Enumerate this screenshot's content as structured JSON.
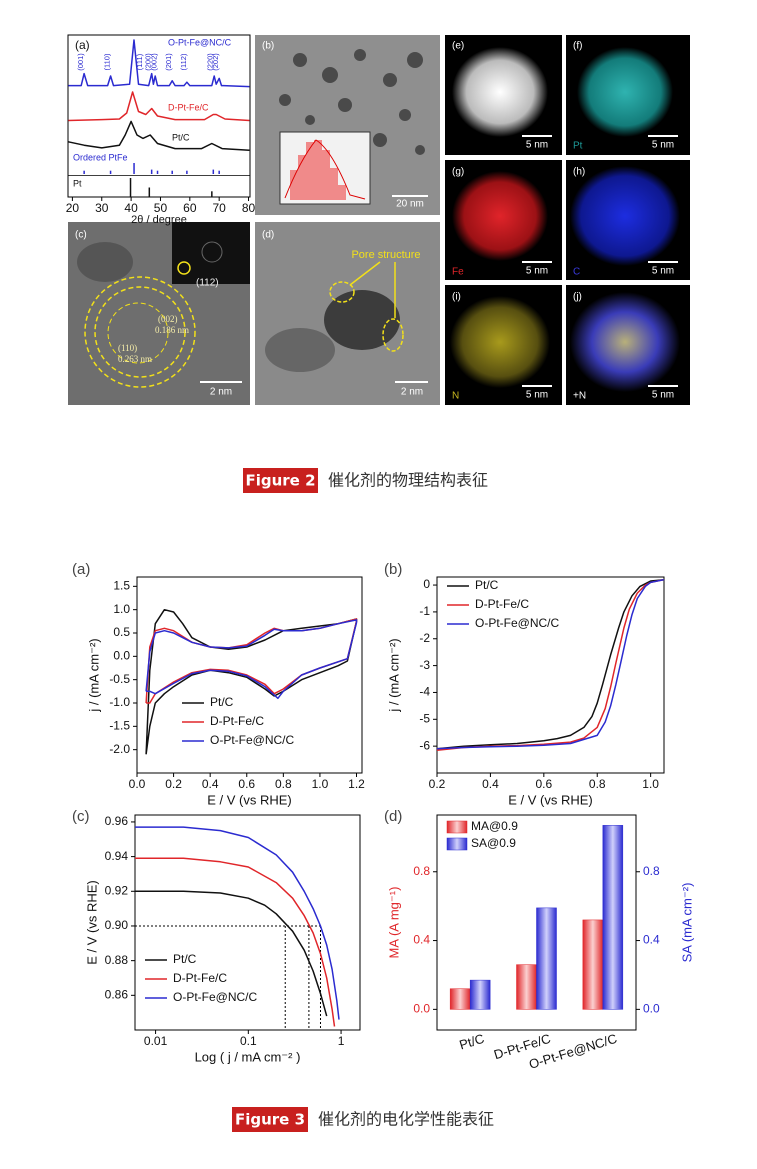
{
  "figure2": {
    "b": {
      "label": "(b)",
      "scale": "20 nm"
    },
    "c": {
      "label": "(c)",
      "scale": "2 nm",
      "annotations": [
        "(112)",
        "(002)",
        "0.186 nm",
        "(110)",
        "0.263 nm"
      ]
    },
    "d": {
      "label": "(d)",
      "scale": "2 nm",
      "annotation": "Pore structure"
    },
    "e": {
      "label": "(e)",
      "scale": "5 nm"
    },
    "f": {
      "label": "(f)",
      "scale": "5 nm",
      "element": "Pt"
    },
    "g": {
      "label": "(g)",
      "scale": "5 nm",
      "element": "Fe"
    },
    "h": {
      "label": "(h)",
      "scale": "5 nm",
      "element": "C"
    },
    "i": {
      "label": "(i)",
      "scale": "5 nm",
      "element": "N"
    },
    "j": {
      "label": "(j)",
      "scale": "5 nm",
      "element": "+N"
    },
    "caption": {
      "label": "Figure 2",
      "text": "催化剂的物理结构表征"
    }
  },
  "figure3": {
    "caption": {
      "label": "Figure 3",
      "text": "催化剂的电化学性能表征"
    }
  },
  "chart_data": [
    {
      "type": "line",
      "panel": "(a)",
      "x_label": "2θ / degree",
      "xlim": [
        18.5,
        80.5
      ],
      "xticks": [
        20,
        30,
        40,
        50,
        60,
        70,
        80
      ],
      "series": [
        {
          "name": "O-Pt-Fe@NC/C",
          "color": "#2b2bd0",
          "x": [
            18.6,
            23,
            24,
            25.2,
            32,
            33,
            34,
            39.5,
            41,
            42.5,
            46,
            47,
            47.6,
            48.2,
            49,
            49.6,
            53,
            54,
            55,
            58,
            59,
            60,
            67.5,
            68.3,
            69,
            70,
            70.8,
            71.5,
            80.3
          ],
          "values": [
            0.05,
            0.05,
            0.3,
            0.05,
            0.05,
            0.25,
            0.05,
            0.08,
            1.0,
            0.08,
            0.05,
            0.3,
            0.08,
            0.25,
            0.05,
            0.05,
            0.05,
            0.15,
            0.05,
            0.05,
            0.12,
            0.05,
            0.05,
            0.25,
            0.08,
            0.2,
            0.05,
            0.05,
            0.03
          ]
        },
        {
          "name": "D-Pt-Fe/C",
          "color": "#e0262a",
          "x": [
            18.6,
            30,
            36,
            38.5,
            40.5,
            42.5,
            45,
            47,
            49,
            55,
            65,
            68,
            69,
            72,
            80.3
          ],
          "values": [
            0.05,
            0.08,
            0.1,
            0.3,
            1.0,
            0.35,
            0.25,
            0.45,
            0.2,
            0.08,
            0.08,
            0.25,
            0.25,
            0.1,
            0.05
          ]
        },
        {
          "name": "Pt/C",
          "color": "#111111",
          "x": [
            18.6,
            24,
            30,
            36,
            38,
            40,
            42,
            44,
            46.5,
            49,
            55,
            64,
            67.5,
            71,
            80.3
          ],
          "values": [
            0.3,
            0.2,
            0.12,
            0.2,
            0.5,
            0.9,
            0.5,
            0.4,
            0.5,
            0.25,
            0.1,
            0.1,
            0.25,
            0.1,
            0.05
          ]
        },
        {
          "name": "Ordered PtFe",
          "color": "#2b2bd0",
          "style": "sticks",
          "x": [
            24,
            33,
            41,
            47,
            49,
            54,
            59,
            68,
            70
          ],
          "values": [
            0.3,
            0.3,
            1,
            0.4,
            0.3,
            0.3,
            0.3,
            0.4,
            0.3
          ],
          "labels": [
            "(001)",
            "(110)",
            "(111)",
            "(200)",
            "(002)",
            "(201)",
            "(112)",
            "(220)",
            "(202)"
          ]
        },
        {
          "name": "Pt",
          "color": "#111111",
          "style": "sticks",
          "x": [
            39.8,
            46.2,
            67.5
          ],
          "values": [
            1,
            0.5,
            0.3
          ]
        }
      ]
    },
    {
      "type": "line",
      "panel": "(a)",
      "x_label": "E / V (vs RHE)",
      "y_label": "j / (mA cm⁻²)",
      "xlim": [
        0,
        1.23
      ],
      "ylim": [
        -2.5,
        1.7
      ],
      "xticks": [
        {
          "value": 0,
          "label": "0.0"
        },
        0.2,
        0.4,
        0.6,
        0.8,
        {
          "value": 1,
          "label": "1.0"
        },
        1.2
      ],
      "yticks": [
        1.5,
        {
          "value": 1,
          "label": "1.0"
        },
        0.5,
        {
          "value": 0,
          "label": "0.0"
        },
        -0.5,
        {
          "value": -1,
          "label": "-1.0"
        },
        -1.5,
        {
          "value": -2,
          "label": "-2.0"
        }
      ],
      "legend": "lower center",
      "series": [
        {
          "name": "Pt/C",
          "color": "#111111",
          "x": [
            0.05,
            0.07,
            0.1,
            0.15,
            0.2,
            0.25,
            0.3,
            0.4,
            0.5,
            0.6,
            0.7,
            0.8,
            0.9,
            1.0,
            1.1,
            1.2,
            1.2,
            1.15,
            1.1,
            1.0,
            0.9,
            0.8,
            0.75,
            0.7,
            0.6,
            0.5,
            0.4,
            0.3,
            0.2,
            0.15,
            0.1,
            0.07,
            0.05
          ],
          "values": [
            -2.1,
            -0.3,
            0.7,
            1.0,
            0.95,
            0.7,
            0.4,
            0.2,
            0.15,
            0.2,
            0.35,
            0.55,
            0.6,
            0.65,
            0.7,
            0.8,
            0.75,
            -0.1,
            -0.2,
            -0.35,
            -0.5,
            -0.75,
            -0.85,
            -0.7,
            -0.45,
            -0.35,
            -0.3,
            -0.4,
            -0.65,
            -0.8,
            -1.0,
            -1.5,
            -2.1
          ]
        },
        {
          "name": "D-Pt-Fe/C",
          "color": "#e0262a",
          "x": [
            0.05,
            0.07,
            0.1,
            0.15,
            0.2,
            0.3,
            0.4,
            0.5,
            0.6,
            0.7,
            0.75,
            0.8,
            0.9,
            1.0,
            1.1,
            1.2,
            1.2,
            1.15,
            1.0,
            0.9,
            0.8,
            0.75,
            0.7,
            0.6,
            0.5,
            0.4,
            0.3,
            0.2,
            0.1,
            0.07,
            0.05
          ],
          "values": [
            -1.0,
            0.2,
            0.55,
            0.6,
            0.55,
            0.3,
            0.2,
            0.18,
            0.25,
            0.5,
            0.6,
            0.55,
            0.55,
            0.6,
            0.7,
            0.8,
            0.75,
            -0.05,
            -0.25,
            -0.4,
            -0.7,
            -0.8,
            -0.6,
            -0.4,
            -0.3,
            -0.28,
            -0.35,
            -0.55,
            -0.8,
            -1.0,
            -1.0
          ]
        },
        {
          "name": "O-Pt-Fe@NC/C",
          "color": "#2b2bd0",
          "x": [
            0.05,
            0.07,
            0.1,
            0.15,
            0.2,
            0.3,
            0.4,
            0.5,
            0.6,
            0.7,
            0.75,
            0.8,
            0.9,
            1.0,
            1.1,
            1.2,
            1.2,
            1.15,
            1.0,
            0.9,
            0.8,
            0.77,
            0.7,
            0.6,
            0.5,
            0.4,
            0.3,
            0.2,
            0.1,
            0.07,
            0.05
          ],
          "values": [
            -0.75,
            0.1,
            0.5,
            0.55,
            0.5,
            0.3,
            0.2,
            0.18,
            0.22,
            0.45,
            0.58,
            0.55,
            0.55,
            0.6,
            0.7,
            0.78,
            0.72,
            -0.05,
            -0.25,
            -0.4,
            -0.75,
            -0.9,
            -0.65,
            -0.42,
            -0.32,
            -0.3,
            -0.37,
            -0.58,
            -0.8,
            -0.75,
            -0.75
          ]
        }
      ]
    },
    {
      "type": "line",
      "panel": "(b)",
      "x_label": "E / V (vs RHE)",
      "y_label": "j / (mA cm⁻²)",
      "xlim": [
        0.2,
        1.05
      ],
      "ylim": [
        -7,
        0.3
      ],
      "xticks": [
        0.2,
        0.4,
        0.6,
        0.8,
        {
          "value": 1,
          "label": "1.0"
        }
      ],
      "yticks": [
        0,
        -1,
        -2,
        -3,
        -4,
        -5,
        -6
      ],
      "legend": "upper left",
      "series": [
        {
          "name": "Pt/C",
          "color": "#111111",
          "x": [
            0.2,
            0.3,
            0.4,
            0.5,
            0.6,
            0.65,
            0.7,
            0.75,
            0.78,
            0.8,
            0.82,
            0.85,
            0.88,
            0.9,
            0.93,
            0.96,
            1.0,
            1.05
          ],
          "values": [
            -6.1,
            -6.0,
            -5.95,
            -5.9,
            -5.8,
            -5.72,
            -5.6,
            -5.3,
            -4.9,
            -4.4,
            -3.7,
            -2.6,
            -1.6,
            -1.0,
            -0.4,
            -0.05,
            0.15,
            0.2
          ]
        },
        {
          "name": "D-Pt-Fe/C",
          "color": "#e0262a",
          "x": [
            0.2,
            0.3,
            0.4,
            0.5,
            0.6,
            0.7,
            0.75,
            0.8,
            0.83,
            0.85,
            0.87,
            0.9,
            0.92,
            0.95,
            0.98,
            1.0,
            1.05
          ],
          "values": [
            -6.15,
            -6.05,
            -6.0,
            -5.98,
            -5.93,
            -5.85,
            -5.7,
            -5.3,
            -4.6,
            -3.8,
            -2.9,
            -1.6,
            -0.9,
            -0.3,
            0.0,
            0.1,
            0.2
          ]
        },
        {
          "name": "O-Pt-Fe@NC/C",
          "color": "#2b2bd0",
          "x": [
            0.2,
            0.3,
            0.4,
            0.5,
            0.6,
            0.7,
            0.8,
            0.83,
            0.85,
            0.87,
            0.89,
            0.91,
            0.93,
            0.95,
            0.98,
            1.0,
            1.05
          ],
          "values": [
            -6.1,
            -6.05,
            -6.02,
            -6.0,
            -5.97,
            -5.9,
            -5.6,
            -5.1,
            -4.5,
            -3.7,
            -2.8,
            -1.9,
            -1.1,
            -0.5,
            -0.05,
            0.1,
            0.2
          ]
        }
      ]
    },
    {
      "type": "line",
      "panel": "(c)",
      "x_label": "Log ( j / mA cm⁻² )",
      "y_label": "E / V (vs RHE)",
      "xscale": "log",
      "xlim": [
        0.006,
        1.6
      ],
      "ylim": [
        0.84,
        0.964
      ],
      "xticks": [
        0.01,
        0.1,
        1
      ],
      "yticks": [
        0.96,
        0.94,
        0.92,
        {
          "value": 0.9,
          "label": "0.90"
        },
        0.88,
        0.86
      ],
      "legend": "lower left",
      "reference_lines": {
        "y": 0.9,
        "x": [
          0.25,
          0.45,
          0.6
        ]
      },
      "series": [
        {
          "name": "Pt/C",
          "color": "#111111",
          "x": [
            0.006,
            0.02,
            0.05,
            0.1,
            0.15,
            0.2,
            0.3,
            0.4,
            0.5,
            0.6,
            0.7
          ],
          "values": [
            0.92,
            0.92,
            0.919,
            0.916,
            0.912,
            0.907,
            0.897,
            0.886,
            0.874,
            0.861,
            0.848
          ]
        },
        {
          "name": "D-Pt-Fe/C",
          "color": "#e0262a",
          "x": [
            0.006,
            0.02,
            0.05,
            0.1,
            0.2,
            0.3,
            0.4,
            0.5,
            0.6,
            0.7,
            0.8,
            0.85
          ],
          "values": [
            0.939,
            0.939,
            0.937,
            0.934,
            0.925,
            0.916,
            0.906,
            0.896,
            0.884,
            0.87,
            0.852,
            0.842
          ]
        },
        {
          "name": "O-Pt-Fe@NC/C",
          "color": "#2b2bd0",
          "x": [
            0.006,
            0.02,
            0.05,
            0.1,
            0.2,
            0.3,
            0.4,
            0.5,
            0.6,
            0.7,
            0.8,
            0.9,
            0.95
          ],
          "values": [
            0.957,
            0.957,
            0.955,
            0.951,
            0.941,
            0.931,
            0.92,
            0.91,
            0.9,
            0.889,
            0.875,
            0.857,
            0.846
          ]
        }
      ]
    },
    {
      "type": "bar",
      "panel": "(d)",
      "y_label": "MA (A mg⁻¹)",
      "y2_label": "SA (mA cm⁻²)",
      "categories": [
        "Pt/C",
        "D-Pt-Fe/C",
        "O-Pt-Fe@NC/C"
      ],
      "ylim": [
        -0.12,
        1.13
      ],
      "yticks": [
        {
          "value": 0,
          "label": "0.0"
        },
        0.4,
        0.8
      ],
      "y2lim": [
        -0.12,
        1.13
      ],
      "y2ticks": [
        {
          "value": 0,
          "label": "0.0"
        },
        0.4,
        0.8
      ],
      "legend": "upper left",
      "series": [
        {
          "name": "MA@0.9",
          "color": "#e0262a",
          "values": [
            0.12,
            0.26,
            0.52
          ]
        },
        {
          "name": "SA@0.9",
          "color": "#2b2bd0",
          "axis": "y2",
          "values": [
            0.17,
            0.59,
            1.07
          ]
        }
      ]
    }
  ]
}
